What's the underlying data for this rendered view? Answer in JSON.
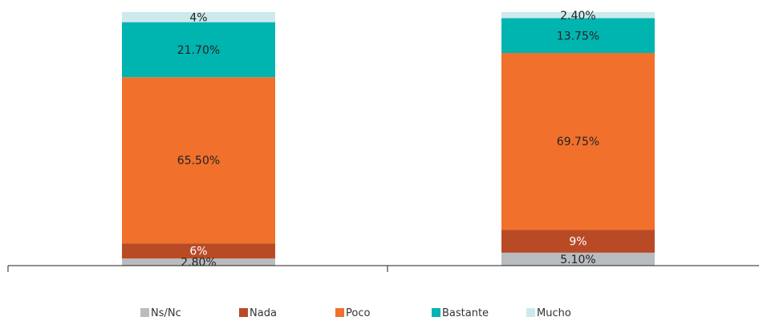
{
  "chart_data": {
    "type": "bar",
    "stacked": true,
    "categories": [
      "",
      ""
    ],
    "series": [
      {
        "name": "Ns/Nc",
        "color": "#b9bcbf",
        "values": [
          2.8,
          5.1
        ],
        "labels": [
          "2.80%",
          "5.10%"
        ],
        "label_color": "#222222"
      },
      {
        "name": "Nada",
        "color": "#b94a26",
        "values": [
          6,
          9
        ],
        "labels": [
          "6%",
          "9%"
        ],
        "label_color": "#ffffff"
      },
      {
        "name": "Poco",
        "color": "#f0702c",
        "values": [
          65.5,
          69.75
        ],
        "labels": [
          "65.50%",
          "69.75%"
        ],
        "label_color": "#222222"
      },
      {
        "name": "Bastante",
        "color": "#00b4b0",
        "values": [
          21.7,
          13.75
        ],
        "labels": [
          "21.70%",
          "13.75%"
        ],
        "label_color": "#222222"
      },
      {
        "name": "Mucho",
        "color": "#cde9ec",
        "values": [
          4,
          2.4
        ],
        "labels": [
          "4%",
          "2.40%"
        ],
        "label_color": "#222222"
      }
    ],
    "ylim": [
      0,
      100
    ],
    "grid": false,
    "legend_position": "bottom",
    "title": "",
    "xlabel": "",
    "ylabel": ""
  }
}
